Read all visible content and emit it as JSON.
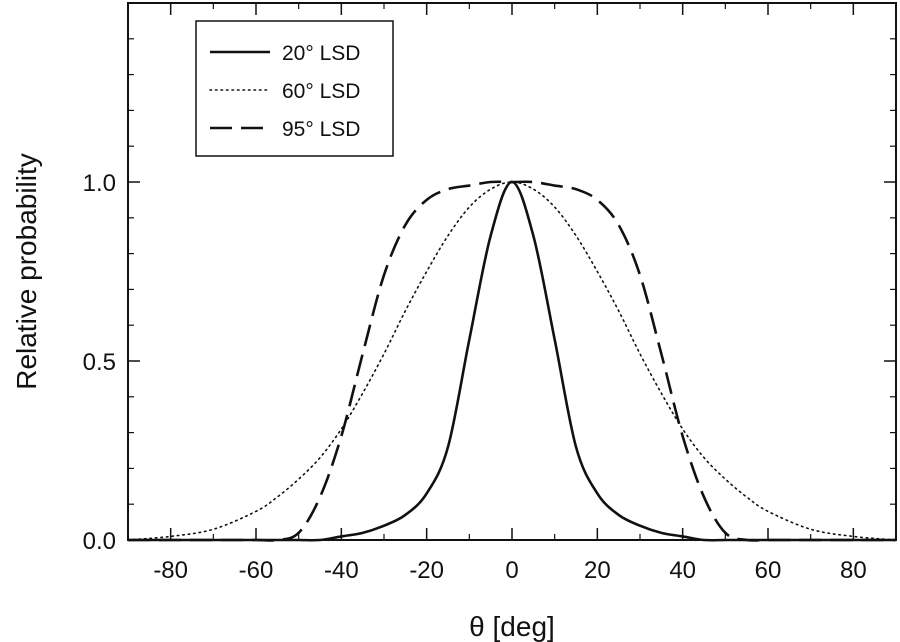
{
  "chart_data": {
    "type": "line",
    "xlabel": "θ [deg]",
    "ylabel": "Relative probability",
    "xlim": [
      -90,
      90
    ],
    "ylim": [
      0,
      1.5
    ],
    "x_ticks": [
      -80,
      -60,
      -40,
      -20,
      0,
      20,
      40,
      60,
      80
    ],
    "x_tick_labels": [
      "-80",
      "-60",
      "-40",
      "-20",
      "0",
      "20",
      "40",
      "60",
      "80"
    ],
    "y_ticks": [
      0,
      0.5,
      1.0
    ],
    "y_tick_labels": [
      "0.0",
      "0.5",
      "1.0"
    ],
    "grid": false,
    "legend": "top-left",
    "x": [
      -90,
      -80,
      -70,
      -60,
      -55,
      -50,
      -45,
      -40,
      -35,
      -30,
      -25,
      -20,
      -15,
      -10,
      -5,
      0,
      5,
      10,
      15,
      20,
      25,
      30,
      35,
      40,
      45,
      50,
      55,
      60,
      70,
      80,
      90
    ],
    "series": [
      {
        "name": "20° LSD",
        "style": "solid",
        "values": [
          0.0,
          0.0,
          0.0,
          0.0,
          0.0,
          0.0,
          0.0,
          0.01,
          0.02,
          0.04,
          0.07,
          0.13,
          0.26,
          0.56,
          0.85,
          1.0,
          0.85,
          0.56,
          0.26,
          0.13,
          0.07,
          0.04,
          0.02,
          0.01,
          0.0,
          0.0,
          0.0,
          0.0,
          0.0,
          0.0,
          0.0
        ]
      },
      {
        "name": "60° LSD",
        "style": "dotted",
        "values": [
          0.0,
          0.01,
          0.03,
          0.08,
          0.12,
          0.17,
          0.23,
          0.31,
          0.41,
          0.52,
          0.64,
          0.75,
          0.85,
          0.93,
          0.98,
          1.0,
          0.98,
          0.93,
          0.85,
          0.75,
          0.64,
          0.52,
          0.41,
          0.31,
          0.23,
          0.17,
          0.12,
          0.08,
          0.03,
          0.01,
          0.0
        ]
      },
      {
        "name": "95° LSD",
        "style": "dashed",
        "values": [
          0.0,
          0.0,
          0.0,
          0.0,
          0.0,
          0.02,
          0.12,
          0.29,
          0.52,
          0.74,
          0.88,
          0.95,
          0.98,
          0.99,
          1.0,
          1.0,
          1.0,
          0.99,
          0.98,
          0.95,
          0.88,
          0.74,
          0.52,
          0.29,
          0.12,
          0.02,
          0.0,
          0.0,
          0.0,
          0.0,
          0.0
        ]
      }
    ]
  }
}
